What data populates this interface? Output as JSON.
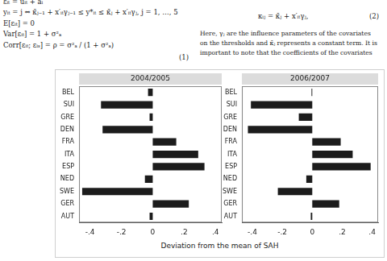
{
  "document": {
    "left_lines": [
      "εᵢₜ = uᵢₜ + aᵢ",
      "yᵢₜ = j ⇔ κ̄ⱼ₋₁ + x′ᵢₜγⱼ₋₁ ≤ y*ᵢₜ ≤ κ̄ⱼ + x′ᵢₜγⱼ, j = 1, …, 5",
      "E[εᵢₜ] = 0",
      "Var[εᵢₜ] = 1 + σ²ₐ",
      "Corr[εᵢₜ; εᵢₛ] = ρ = σ²ₐ / (1 + σ²ₐ)"
    ],
    "left_eq_number": "(1)",
    "right_equation": "κᵢⱼ = κ̄ⱼ + x′ᵢₜγⱼ,",
    "right_eq_number": "(2)",
    "right_text": [
      "Here, γⱼ are the influence parameters of the covariates",
      "on the thresholds and κ̄ⱼ represents a constant term. It is",
      "important to note that the coefficients of the covariates"
    ]
  },
  "chart_data": {
    "type": "bar",
    "orientation": "horizontal",
    "xlabel": "Deviation from the mean of SAH",
    "categories": [
      "BEL",
      "SUI",
      "GRE",
      "DEN",
      "FRA",
      "ITA",
      "ESP",
      "NED",
      "SWE",
      "GER",
      "AUT"
    ],
    "color": "#1c1c1c",
    "grid": false,
    "xlim": [
      -0.47,
      0.44
    ],
    "xticks": [
      {
        "value": -0.4,
        "label": "-.4"
      },
      {
        "value": -0.2,
        "label": "-.2"
      },
      0,
      {
        "value": 0.2,
        "label": ".2"
      },
      {
        "value": 0.4,
        "label": ".4"
      }
    ],
    "panels": [
      {
        "title": "2004/2005",
        "values": [
          -0.03,
          -0.33,
          -0.02,
          -0.32,
          0.15,
          0.29,
          0.33,
          -0.05,
          -0.45,
          0.23,
          -0.02
        ]
      },
      {
        "title": "2006/2007",
        "values": [
          -0.005,
          -0.41,
          -0.09,
          -0.43,
          0.19,
          0.27,
          0.39,
          -0.04,
          -0.23,
          0.18,
          -0.01
        ]
      }
    ]
  }
}
